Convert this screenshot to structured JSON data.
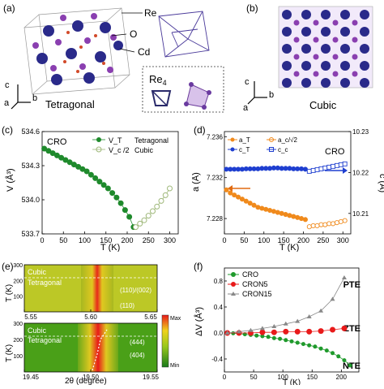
{
  "panel_a": {
    "letter": "(a)",
    "atom_labels": [
      "Re",
      "O",
      "Cd"
    ],
    "axes": [
      "c",
      "a",
      "b"
    ],
    "phase": "Tetragonal",
    "inset_label": "Re4",
    "inset_label_main": "Re",
    "inset_label_sub": "4"
  },
  "panel_b": {
    "letter": "(b)",
    "axes": [
      "c",
      "a",
      "b"
    ],
    "phase": "Cubic"
  },
  "panel_c": {
    "letter": "(c)",
    "sample": "CRO",
    "ylabel": "V (Å³)",
    "xlabel": "T (K)",
    "xticks": [
      "0",
      "50",
      "100",
      "150",
      "200",
      "250",
      "300"
    ],
    "yticks": [
      "533.7",
      "534.0",
      "534.3",
      "534.6"
    ],
    "legend": [
      {
        "symbol": "V_T",
        "text": "Tetragonal",
        "color": "#1f8a2c"
      },
      {
        "symbol": "V_c /2",
        "text": "Cubic",
        "color": "#9fb87a"
      }
    ],
    "colors": {
      "tetragonal": "#1f8a2c",
      "cubic": "#9fb87a"
    }
  },
  "panel_d": {
    "letter": "(d)",
    "sample": "CRO",
    "ylabel_left": "a (Å)",
    "ylabel_right": "c (Å)",
    "xlabel": "T (K)",
    "xticks": [
      "0",
      "50",
      "100",
      "150",
      "200",
      "250",
      "300"
    ],
    "yticks_left": [
      "7.228",
      "7.232",
      "7.236"
    ],
    "yticks_right": [
      "10.21",
      "10.22",
      "10.23"
    ],
    "legend": [
      {
        "label": "a_T",
        "color": "#f08a1c"
      },
      {
        "label": "a_c/√2",
        "color": "#f08a1c"
      },
      {
        "label": "c_T",
        "color": "#1f3fd0"
      },
      {
        "label": "c_c",
        "color": "#1f3fd0"
      }
    ]
  },
  "panel_e": {
    "letter": "(e)",
    "ylabel": "T (K)",
    "xlabel": "2θ (degree)",
    "top": {
      "xticks": [
        "5.55",
        "5.60",
        "5.65"
      ],
      "yticks": [
        "300",
        "200",
        "100"
      ],
      "phase_top": "Cubic",
      "phase_bottom": "Tetragonal",
      "peaks": [
        "(110)/(002)",
        "(110)"
      ]
    },
    "bottom": {
      "xticks": [
        "19.45",
        "19.50",
        "19.55"
      ],
      "yticks": [
        "300",
        "200",
        "100"
      ],
      "phase_top": "Cubic",
      "phase_bottom": "Tetragonal",
      "peaks": [
        "(444)",
        "(404)"
      ]
    },
    "colorbar": {
      "max": "Max",
      "min": "Min"
    }
  },
  "panel_f": {
    "letter": "(f)",
    "ylabel": "ΔV (Å³)",
    "xlabel": "T (K)",
    "xticks": [
      "0",
      "50",
      "100",
      "150",
      "200"
    ],
    "yticks": [
      "0.8",
      "0.4",
      "0.0",
      "-0.4"
    ],
    "legend": [
      {
        "label": "CRO",
        "color": "#1f9a2c"
      },
      {
        "label": "CRON5",
        "color": "#e81a1a"
      },
      {
        "label": "CRON15",
        "color": "#888888"
      }
    ],
    "tags": [
      "PTE",
      "ZTE",
      "NTE"
    ]
  },
  "chart_data": [
    {
      "type": "scatter",
      "panel": "c",
      "xlabel": "T (K)",
      "ylabel": "V (Å³)",
      "xlim": [
        0,
        320
      ],
      "ylim": [
        533.7,
        534.6
      ],
      "series": [
        {
          "name": "V_T Tetragonal",
          "x": [
            5,
            15,
            25,
            35,
            45,
            55,
            65,
            75,
            85,
            95,
            105,
            115,
            125,
            135,
            145,
            155,
            165,
            175,
            185,
            195,
            205,
            215
          ],
          "y": [
            534.45,
            534.43,
            534.41,
            534.39,
            534.37,
            534.35,
            534.33,
            534.31,
            534.29,
            534.27,
            534.25,
            534.22,
            534.19,
            534.16,
            534.13,
            534.1,
            534.06,
            534.02,
            533.97,
            533.91,
            533.85,
            533.76
          ]
        },
        {
          "name": "V_c /2 Cubic",
          "x": [
            220,
            230,
            240,
            250,
            260,
            270,
            280,
            290,
            300
          ],
          "y": [
            533.76,
            533.79,
            533.82,
            533.86,
            533.9,
            533.94,
            533.99,
            534.04,
            534.1
          ]
        }
      ]
    },
    {
      "type": "scatter",
      "panel": "d",
      "xlabel": "T (K)",
      "ylabel": "a (Å)",
      "ylabel_right": "c (Å)",
      "xlim": [
        0,
        320
      ],
      "ylim": [
        7.2265,
        7.2365
      ],
      "ylim_right": [
        10.205,
        10.23
      ],
      "series": [
        {
          "name": "a_T",
          "axis": "left",
          "x": [
            5,
            15,
            25,
            35,
            45,
            55,
            65,
            75,
            85,
            95,
            105,
            115,
            125,
            135,
            145,
            155,
            165,
            175,
            185,
            195,
            205
          ],
          "y": [
            7.2308,
            7.2305,
            7.2303,
            7.2301,
            7.2299,
            7.2297,
            7.2295,
            7.2293,
            7.2291,
            7.229,
            7.2289,
            7.2288,
            7.2287,
            7.2286,
            7.2285,
            7.2284,
            7.2283,
            7.2282,
            7.2281,
            7.228,
            7.2279
          ]
        },
        {
          "name": "a_c/√2",
          "axis": "left",
          "x": [
            215,
            225,
            235,
            245,
            255,
            265,
            275,
            285,
            295,
            305
          ],
          "y": [
            7.2272,
            7.2273,
            7.2273,
            7.2274,
            7.2274,
            7.2275,
            7.2275,
            7.2276,
            7.2277,
            7.2278
          ]
        },
        {
          "name": "c_T",
          "axis": "right",
          "x": [
            5,
            15,
            25,
            35,
            45,
            55,
            65,
            75,
            85,
            95,
            105,
            115,
            125,
            135,
            145,
            155,
            165,
            175,
            185,
            195,
            205
          ],
          "y": [
            10.2208,
            10.2208,
            10.2208,
            10.2208,
            10.2208,
            10.2209,
            10.2209,
            10.2209,
            10.2209,
            10.221,
            10.221,
            10.221,
            10.2211,
            10.2211,
            10.221,
            10.221,
            10.221,
            10.2209,
            10.2209,
            10.2209,
            10.2208
          ]
        },
        {
          "name": "c_c",
          "axis": "right",
          "x": [
            215,
            225,
            235,
            245,
            255,
            265,
            275,
            285,
            295,
            305
          ],
          "y": [
            10.2203,
            10.2205,
            10.2207,
            10.2209,
            10.2211,
            10.2213,
            10.2215,
            10.2217,
            10.2219,
            10.2221
          ]
        }
      ]
    },
    {
      "type": "heatmap",
      "panel": "e",
      "xlabel": "2θ (degree)",
      "ylabel": "T (K)",
      "subplots": [
        {
          "xlim": [
            5.55,
            5.65
          ],
          "ylim": [
            0,
            300
          ],
          "peaks": [
            "(110)/(002)",
            "(110)"
          ]
        },
        {
          "xlim": [
            19.45,
            19.55
          ],
          "ylim": [
            0,
            300
          ],
          "peaks": [
            "(444)",
            "(404)"
          ]
        }
      ]
    },
    {
      "type": "line",
      "panel": "f",
      "xlabel": "T (K)",
      "ylabel": "ΔV (Å³)",
      "xlim": [
        0,
        230
      ],
      "ylim": [
        -0.6,
        1.0
      ],
      "series": [
        {
          "name": "CRO",
          "x": [
            5,
            15,
            25,
            35,
            45,
            55,
            65,
            75,
            85,
            95,
            105,
            115,
            125,
            135,
            145,
            155,
            165,
            175,
            185,
            195,
            205,
            215
          ],
          "y": [
            0.0,
            -0.005,
            -0.01,
            -0.02,
            -0.03,
            -0.04,
            -0.05,
            -0.06,
            -0.08,
            -0.09,
            -0.11,
            -0.13,
            -0.15,
            -0.17,
            -0.19,
            -0.21,
            -0.24,
            -0.27,
            -0.31,
            -0.36,
            -0.42,
            -0.5
          ]
        },
        {
          "name": "CRON5",
          "x": [
            5,
            25,
            45,
            65,
            85,
            105,
            125,
            145,
            165,
            185,
            205
          ],
          "y": [
            0.0,
            0.0,
            0.0,
            0.01,
            0.01,
            0.02,
            0.02,
            0.02,
            0.03,
            0.05,
            0.07
          ]
        },
        {
          "name": "CRON15",
          "x": [
            5,
            25,
            45,
            65,
            85,
            105,
            125,
            145,
            165,
            185,
            205
          ],
          "y": [
            0.0,
            0.02,
            0.04,
            0.07,
            0.1,
            0.14,
            0.18,
            0.25,
            0.34,
            0.52,
            0.85
          ]
        }
      ]
    }
  ]
}
